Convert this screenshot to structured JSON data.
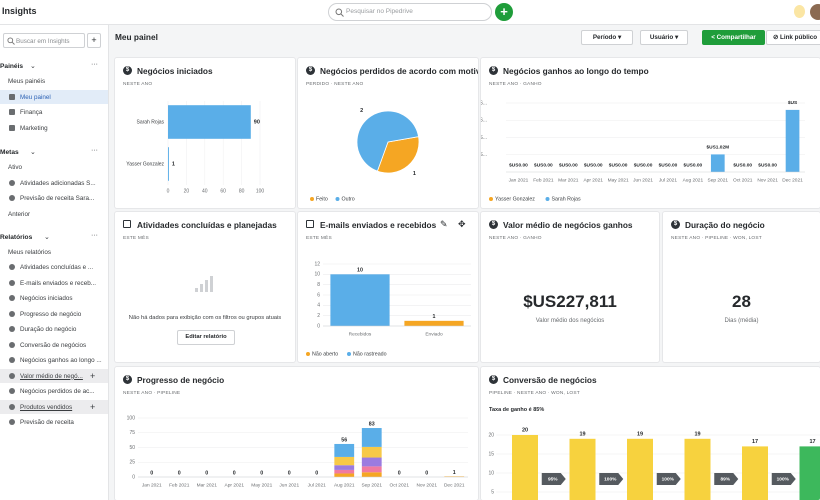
{
  "topbar": {
    "app": "Insights",
    "search": "Pesquisar no Pipedrive"
  },
  "sidebar": {
    "search": "Buscar em Insights",
    "sections": [
      {
        "title": "Painéis",
        "group": "Meus painéis",
        "items": [
          "Meu painel",
          "Finança",
          "Marketing"
        ]
      },
      {
        "title": "Metas",
        "group": "Ativo",
        "items": [
          "Atividades adicionadas S...",
          "Previsão de receita Sara..."
        ],
        "after": "Anterior"
      },
      {
        "title": "Relatórios",
        "group": "Meus relatórios",
        "items": [
          "Atividades concluídas e ...",
          "E-mails enviados e receb...",
          "Negócios iniciados",
          "Progresso de negócio",
          "Duração do negócio",
          "Conversão de negócios",
          "Negócios ganhos ao longo ...",
          "Valor médio de negó...",
          "Negócios perdidos de ac...",
          "Produtos vendidos",
          "Previsão de receita"
        ]
      }
    ]
  },
  "header": {
    "title": "Meu painel",
    "period": "Período",
    "user": "Usuário",
    "share": "Compartilhar",
    "public_link": "Link público"
  },
  "cards": [
    {
      "title": "Negócios iniciados",
      "subtitle": "NESTE ANO",
      "chart": {
        "type": "hbar",
        "categories": [
          "Sarah Rojas",
          "Yasser Gonzalez"
        ],
        "values": [
          90,
          1
        ],
        "color": "#5aaee8",
        "xlim": [
          0,
          100
        ],
        "xticks": [
          0,
          20,
          40,
          60,
          80,
          100
        ],
        "grid": true
      }
    },
    {
      "title": "Negócios perdidos de acordo com motivos",
      "subtitle": "PERDIDO  ·  NESTE ANO",
      "chart": {
        "type": "pie",
        "categories": [
          "Feito",
          "Outro"
        ],
        "values": [
          1,
          2
        ],
        "colors": [
          "#f5a623",
          "#5aaee8"
        ]
      }
    },
    {
      "title": "Negócios ganhos ao longo do tempo",
      "subtitle": "NESTE ANO  ·  GANHO",
      "chart": {
        "type": "stack",
        "categories": [
          "Jan 2021",
          "Feb 2021",
          "Mar 2021",
          "Apr 2021",
          "May 2021",
          "Jun 2021",
          "Jul 2021",
          "Aug 2021",
          "Sep 2021",
          "Oct 2021",
          "Nov 2021",
          "Dec 2021"
        ],
        "series": [
          {
            "name": "Yasser Gonzalez",
            "color": "#f5a623",
            "values": [
              0,
              0,
              0,
              0,
              0,
              0,
              0,
              0,
              0,
              0,
              0,
              0
            ]
          },
          {
            "name": "Sarah Rojas",
            "color": "#5aaee8",
            "values": [
              0,
              0,
              0,
              0,
              0,
              0,
              0,
              0,
              1020000,
              0,
              0,
              3600000
            ],
            "value_labels": [
              "$US0.00",
              "$US0.00",
              "$US0.00",
              "$US0.00",
              "$US0.00",
              "$US0.00",
              "$US0.00",
              "$US0.00",
              "$US1.02M",
              "$US0.00",
              "$US0.00",
              "$US"
            ]
          }
        ],
        "ylim": [
          0,
          4000000
        ],
        "yticks": [
          {
            "value": 1000000,
            "label": "$US..."
          },
          {
            "value": 2000000,
            "label": "$US..."
          },
          {
            "value": 3000000,
            "label": "$US..."
          },
          {
            "value": 4000000,
            "label": "$US..."
          }
        ],
        "grid": true
      }
    },
    {
      "title": "Atividades concluídas e planejadas",
      "subtitle": "ESTE MÊS",
      "empty": {
        "message": "Não há dados para exibição com os filtros ou grupos atuais",
        "button": "Editar relatório"
      }
    },
    {
      "title": "E-mails enviados e recebidos",
      "subtitle": "ESTE MÊS",
      "chart": {
        "type": "stack",
        "categories": [
          "Recebidos",
          "Enviado"
        ],
        "series": [
          {
            "name": "Não aberto",
            "color": "#f5a623",
            "values": [
              0,
              1
            ]
          },
          {
            "name": "Não rastreado",
            "color": "#5aaee8",
            "values": [
              10,
              0
            ]
          }
        ],
        "totals": [
          10,
          1
        ],
        "ylim": [
          0,
          12
        ],
        "yticks": [
          0,
          2,
          4,
          6,
          8,
          10,
          12
        ],
        "grid": true
      }
    },
    {
      "title": "Valor médio de negócios ganhos",
      "subtitle": "NESTE ANO  ·  GANHO",
      "big": "$US227,811",
      "caption": "Valor médio dos negócios"
    },
    {
      "title": "Duração do negócio",
      "subtitle": "NESTE ANO  ·  PIPELINE  ·  WON, LOST",
      "big": 28,
      "caption": "Dias (média)"
    },
    {
      "title": "Progresso de negócio",
      "subtitle": "NESTE ANO  ·  PIPELINE",
      "chart": {
        "type": "stack",
        "categories": [
          "Jan 2021",
          "Feb 2021",
          "Mar 2021",
          "Apr 2021",
          "May 2021",
          "Jun 2021",
          "Jul 2021",
          "Aug 2021",
          "Sep 2021",
          "Oct 2021",
          "Nov 2021",
          "Dec 2021"
        ],
        "series": [
          {
            "color": "#f5a623",
            "values": [
              0,
              0,
              0,
              0,
              0,
              0,
              0,
              6,
              8,
              0,
              0,
              1
            ]
          },
          {
            "color": "#f07aa0",
            "values": [
              0,
              0,
              0,
              0,
              0,
              0,
              0,
              6,
              10,
              0,
              0,
              0
            ]
          },
          {
            "color": "#9b7be0",
            "values": [
              0,
              0,
              0,
              0,
              0,
              0,
              0,
              8,
              15,
              0,
              0,
              0
            ]
          },
          {
            "color": "#f7c948",
            "values": [
              0,
              0,
              0,
              0,
              0,
              0,
              0,
              14,
              18,
              0,
              0,
              0
            ]
          },
          {
            "color": "#5aaee8",
            "values": [
              0,
              0,
              0,
              0,
              0,
              0,
              0,
              22,
              32,
              0,
              0,
              0
            ]
          }
        ],
        "totals": [
          0,
          0,
          0,
          0,
          0,
          0,
          0,
          56,
          83,
          0,
          0,
          1
        ],
        "ylim": [
          0,
          100
        ],
        "yticks": [
          0,
          25,
          50,
          75,
          100
        ],
        "grid": true
      }
    },
    {
      "title": "Conversão de negócios",
      "subtitle": "PIPELINE  ·  NESTE ANO  ·  WON, LOST",
      "rate": "Taxa de ganho é 85%",
      "chart": {
        "type": "funnel",
        "values": [
          20,
          19,
          19,
          19,
          17,
          17
        ],
        "colors": [
          "#f7d23e",
          "#f7d23e",
          "#f7d23e",
          "#f7d23e",
          "#f7d23e",
          "#3db85c"
        ],
        "conversion": {
          "values": [
            95,
            100,
            100,
            89,
            100
          ],
          "value_labels": [
            "95%",
            "100%",
            "100%",
            "89%",
            "100%"
          ]
        },
        "ylim": [
          0,
          20
        ],
        "yticks": [
          5,
          10,
          15,
          20
        ],
        "grid": true
      }
    }
  ]
}
